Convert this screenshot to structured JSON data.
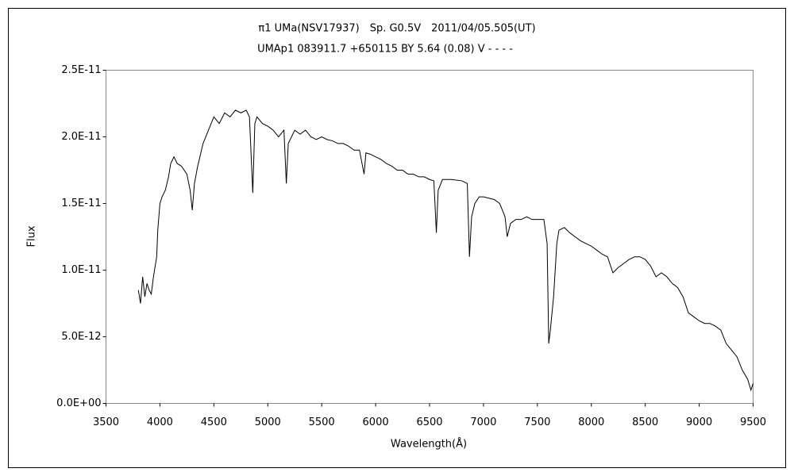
{
  "chart_data": {
    "type": "line",
    "title": "π1 UMa(NSV17937)　Sp. G0.5V　2011/04/05.505(UT)",
    "subtitle": "UMAp1 083911.7 +650115 BY 5.64 (0.08) V - - - -",
    "x_label": "Wavelength(Å)",
    "y_label": "Flux",
    "color": "#000000",
    "xlim": [
      3500,
      9500
    ],
    "xticks": [
      3500,
      4000,
      4500,
      5000,
      5500,
      6000,
      6500,
      7000,
      7500,
      8000,
      8500,
      9000,
      9500
    ],
    "ylim": [
      0,
      2.5e-11
    ],
    "yticks": [
      {
        "value": 0,
        "label": "0.0E+00"
      },
      {
        "value": 5e-12,
        "label": "5.0E-12"
      },
      {
        "value": 1e-11,
        "label": "1.0E-11"
      },
      {
        "value": 1.5e-11,
        "label": "1.5E-11"
      },
      {
        "value": 2e-11,
        "label": "2.0E-11"
      },
      {
        "value": 2.5e-11,
        "label": "2.5E-11"
      }
    ],
    "grid": false,
    "x": [
      3800,
      3820,
      3840,
      3860,
      3880,
      3900,
      3920,
      3940,
      3960,
      3970,
      3980,
      4000,
      4020,
      4050,
      4080,
      4100,
      4130,
      4160,
      4200,
      4250,
      4280,
      4300,
      4320,
      4350,
      4400,
      4450,
      4500,
      4550,
      4600,
      4650,
      4700,
      4750,
      4800,
      4830,
      4861,
      4880,
      4900,
      4950,
      5000,
      5050,
      5100,
      5150,
      5172,
      5190,
      5250,
      5300,
      5350,
      5400,
      5450,
      5500,
      5550,
      5600,
      5650,
      5700,
      5750,
      5800,
      5850,
      5893,
      5910,
      5950,
      6000,
      6050,
      6100,
      6150,
      6200,
      6250,
      6300,
      6350,
      6400,
      6450,
      6500,
      6540,
      6563,
      6580,
      6620,
      6700,
      6800,
      6850,
      6870,
      6890,
      6920,
      6960,
      7000,
      7100,
      7150,
      7200,
      7220,
      7250,
      7300,
      7350,
      7400,
      7450,
      7500,
      7560,
      7590,
      7605,
      7620,
      7650,
      7680,
      7700,
      7750,
      7800,
      7850,
      7900,
      7950,
      8000,
      8050,
      8100,
      8150,
      8200,
      8250,
      8300,
      8350,
      8400,
      8450,
      8500,
      8550,
      8600,
      8650,
      8700,
      8750,
      8800,
      8850,
      8900,
      8950,
      9000,
      9050,
      9100,
      9150,
      9200,
      9250,
      9300,
      9350,
      9400,
      9450,
      9480,
      9500
    ],
    "values": [
      8.5e-12,
      7.5e-12,
      9.5e-12,
      8e-12,
      9e-12,
      8.5e-12,
      8.2e-12,
      9.5e-12,
      1.05e-11,
      1.1e-11,
      1.3e-11,
      1.5e-11,
      1.55e-11,
      1.6e-11,
      1.7e-11,
      1.8e-11,
      1.85e-11,
      1.8e-11,
      1.78e-11,
      1.72e-11,
      1.6e-11,
      1.45e-11,
      1.65e-11,
      1.78e-11,
      1.95e-11,
      2.05e-11,
      2.15e-11,
      2.1e-11,
      2.18e-11,
      2.15e-11,
      2.2e-11,
      2.18e-11,
      2.2e-11,
      2.15e-11,
      1.58e-11,
      2.1e-11,
      2.15e-11,
      2.1e-11,
      2.08e-11,
      2.05e-11,
      2e-11,
      2.05e-11,
      1.65e-11,
      1.95e-11,
      2.05e-11,
      2.02e-11,
      2.05e-11,
      2e-11,
      1.98e-11,
      2e-11,
      1.98e-11,
      1.97e-11,
      1.95e-11,
      1.95e-11,
      1.93e-11,
      1.9e-11,
      1.9e-11,
      1.72e-11,
      1.88e-11,
      1.87e-11,
      1.85e-11,
      1.83e-11,
      1.8e-11,
      1.78e-11,
      1.75e-11,
      1.75e-11,
      1.72e-11,
      1.72e-11,
      1.7e-11,
      1.7e-11,
      1.68e-11,
      1.67e-11,
      1.28e-11,
      1.6e-11,
      1.68e-11,
      1.68e-11,
      1.67e-11,
      1.65e-11,
      1.1e-11,
      1.4e-11,
      1.5e-11,
      1.55e-11,
      1.55e-11,
      1.53e-11,
      1.5e-11,
      1.4e-11,
      1.25e-11,
      1.35e-11,
      1.38e-11,
      1.38e-11,
      1.4e-11,
      1.38e-11,
      1.38e-11,
      1.38e-11,
      1.2e-11,
      4.5e-12,
      5.5e-12,
      8e-12,
      1.2e-11,
      1.3e-11,
      1.32e-11,
      1.28e-11,
      1.25e-11,
      1.22e-11,
      1.2e-11,
      1.18e-11,
      1.15e-11,
      1.12e-11,
      1.1e-11,
      9.8e-12,
      1.02e-11,
      1.05e-11,
      1.08e-11,
      1.1e-11,
      1.1e-11,
      1.08e-11,
      1.03e-11,
      9.5e-12,
      9.8e-12,
      9.5e-12,
      9e-12,
      8.7e-12,
      8e-12,
      6.8e-12,
      6.5e-12,
      6.2e-12,
      6e-12,
      6e-12,
      5.8e-12,
      5.5e-12,
      4.5e-12,
      4e-12,
      3.5e-12,
      2.5e-12,
      1.8e-12,
      1e-12,
      1.5e-12
    ]
  }
}
